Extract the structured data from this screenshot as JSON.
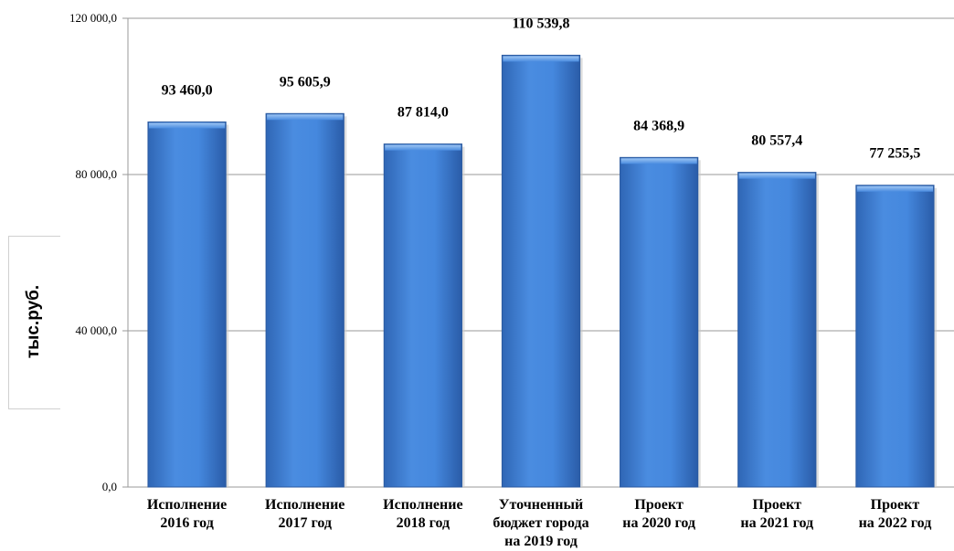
{
  "chart_data": {
    "type": "bar",
    "categories": [
      [
        "Исполнение",
        "2016 год"
      ],
      [
        "Исполнение",
        "2017 год"
      ],
      [
        "Исполнение",
        "2018 год"
      ],
      [
        "Уточненный",
        "бюджет города",
        "на 2019 год"
      ],
      [
        "Проект",
        "на 2020 год"
      ],
      [
        "Проект",
        "на 2021 год"
      ],
      [
        "Проект",
        "на 2022 год"
      ]
    ],
    "values": [
      93460.0,
      95605.9,
      87814.0,
      110539.8,
      84368.9,
      80557.4,
      77255.5
    ],
    "value_labels": [
      "93 460,0",
      "95 605,9",
      "87 814,0",
      "110 539,8",
      "84 368,9",
      "80 557,4",
      "77 255,5"
    ],
    "ylabel": "тыс.руб.",
    "ylim": [
      0,
      120000
    ],
    "yticks": [
      0,
      40000,
      80000,
      120000
    ],
    "ytick_labels": [
      "0,0",
      "40 000,0",
      "80 000,0",
      "120 000,0"
    ],
    "grid": true,
    "bar_color": "#3f7fd6"
  }
}
